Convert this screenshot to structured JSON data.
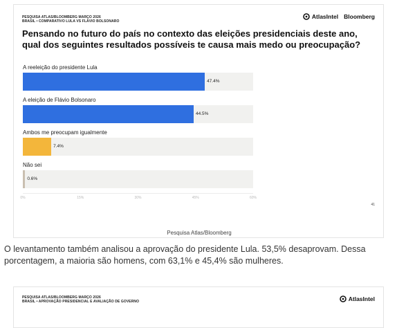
{
  "card1": {
    "header_line1": "PESQUISA ATLAS/BLOOMBERG MARÇO 2026",
    "header_line2": "BRASIL • COMPARATIVO LULA VS FLÁVIO BOLSONARO",
    "logo_atlas": "AtlasIntel",
    "logo_bloomberg": "Bloomberg",
    "page_number": "41",
    "source_caption": "Pesquisa Atlas/Bloomberg"
  },
  "chart_data": {
    "type": "bar",
    "orientation": "horizontal",
    "title": "Pensando no futuro do país no contexto das eleições presidenciais deste ano, qual dos seguintes resultados possíveis te causa mais medo ou preocupação?",
    "categories": [
      "A reeleição do presidente Lula",
      "A eleição de Flávio Bolsonaro",
      "Ambos me preocupam igualmente",
      "Não sei"
    ],
    "values": [
      47.4,
      44.5,
      7.4,
      0.6
    ],
    "value_labels": [
      "47.4%",
      "44.5%",
      "7.4%",
      "0.6%"
    ],
    "colors": [
      "#2f6fe0",
      "#2f6fe0",
      "#f3b63b",
      "#c9bfb0"
    ],
    "xlim": [
      0,
      60
    ],
    "ticks": [
      0,
      15,
      30,
      45,
      60
    ],
    "tick_labels": [
      "0%",
      "15%",
      "30%",
      "45%",
      "60%"
    ],
    "grid": false
  },
  "article": {
    "paragraph": "O levantamento também analisou a aprovação do presidente Lula. 53,5% desaprovam. Dessa porcentagem, a maioria são homens, com 63,1% e 45,4% são mulheres."
  },
  "card2": {
    "header_line1": "PESQUISA ATLAS/BLOOMBERG MARÇO 2026",
    "header_line2": "BRASIL • APROVAÇÃO PRESIDENCIAL E AVALIAÇÃO DE GOVERNO",
    "logo_atlas": "AtlasIntel"
  }
}
